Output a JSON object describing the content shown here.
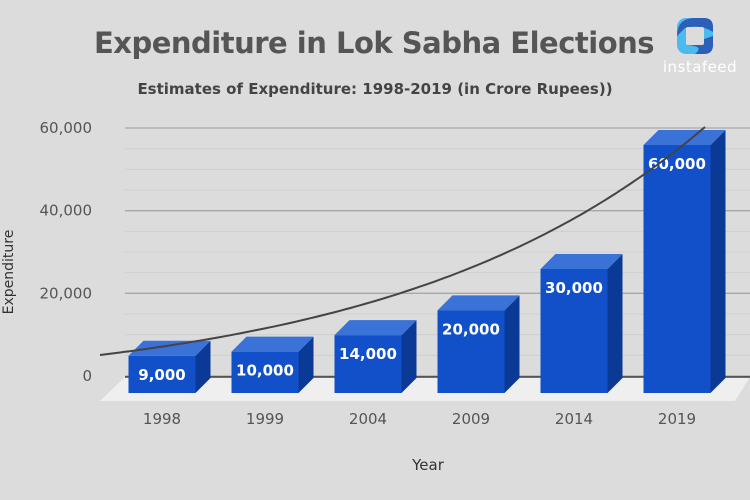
{
  "chart_data": {
    "type": "bar",
    "title": "Expenditure in Lok Sabha Elections",
    "subtitle": "Estimates of Expenditure: 1998-2019 (in Crore Rupees))",
    "xlabel": "Year",
    "ylabel": "Expenditure",
    "categories": [
      "1998",
      "1999",
      "2004",
      "2009",
      "2014",
      "2019"
    ],
    "values": [
      9000,
      10000,
      14000,
      20000,
      30000,
      60000
    ],
    "data_labels": [
      "9,000",
      "10,000",
      "14,000",
      "20,000",
      "30,000",
      "60,000"
    ],
    "ylim": [
      0,
      60000
    ],
    "yticks": [
      0,
      20000,
      40000,
      60000
    ],
    "ytick_labels": [
      "0",
      "20,000",
      "40,000",
      "60,000"
    ],
    "grid": true,
    "style": "3d",
    "trendline": "exponential",
    "colors": {
      "bar_front": "#1150c8",
      "bar_top": "#3a72d8",
      "bar_side": "#0b3a96",
      "trendline": "#444444",
      "background": "#dcdcdc"
    }
  },
  "logo": {
    "text": "instafeed",
    "colors": [
      "#2c5fb7",
      "#4cb9ef"
    ]
  }
}
